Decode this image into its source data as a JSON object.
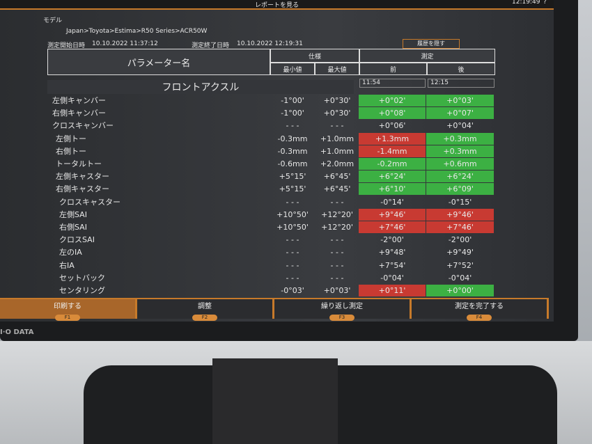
{
  "header": {
    "title": "レポートを見る",
    "clock": "12:19:49",
    "help": "?"
  },
  "model": {
    "label": "モデル",
    "path": "Japan>Toyota>Estima>R50 Series>ACR50W"
  },
  "start": {
    "label": "測定開始日時",
    "value": "10.10.2022 11:37:12"
  },
  "end": {
    "label": "測定終了日時",
    "value": "10.10.2022 12:19:31"
  },
  "hide_history": "履歴を隠す",
  "table": {
    "param_header": "パラメーター名",
    "spec_header": "仕様",
    "min_header": "最小値",
    "max_header": "最大値",
    "measure_header": "測定",
    "before_header": "前",
    "after_header": "後",
    "section": "フロントアクスル",
    "before_time": "11:54",
    "after_time": "12:15",
    "rows": [
      {
        "name": "左側キャンバー",
        "min": "-1°00'",
        "max": "+0°30'",
        "before": "+0°02'",
        "before_color": "#3cb043",
        "after": "+0°03'",
        "after_color": "#3cb043"
      },
      {
        "name": "右側キャンバー",
        "min": "-1°00'",
        "max": "+0°30'",
        "before": "+0°08'",
        "before_color": "#3cb043",
        "after": "+0°07'",
        "after_color": "#3cb043"
      },
      {
        "name": "クロスキャンバー",
        "min": "- - -",
        "max": "- - -",
        "before": "+0°06'",
        "after": "+0°04'"
      },
      {
        "name": "左側トー",
        "min": "-0.3mm",
        "max": "+1.0mm",
        "before": "+1.3mm",
        "before_color": "#c83a32",
        "after": "+0.3mm",
        "after_color": "#3cb043"
      },
      {
        "name": "右側トー",
        "min": "-0.3mm",
        "max": "+1.0mm",
        "before": "-1.4mm",
        "before_color": "#c83a32",
        "after": "+0.3mm",
        "after_color": "#3cb043"
      },
      {
        "name": "トータルトー",
        "min": "-0.6mm",
        "max": "+2.0mm",
        "before": "-0.2mm",
        "before_color": "#3cb043",
        "after": "+0.6mm",
        "after_color": "#3cb043"
      },
      {
        "name": "左側キャスター",
        "min": "+5°15'",
        "max": "+6°45'",
        "before": "+6°24'",
        "before_color": "#3cb043",
        "after": "+6°24'",
        "after_color": "#3cb043"
      },
      {
        "name": "右側キャスター",
        "min": "+5°15'",
        "max": "+6°45'",
        "before": "+6°10'",
        "before_color": "#3cb043",
        "after": "+6°09'",
        "after_color": "#3cb043"
      },
      {
        "name": "クロスキャスター",
        "min": "- - -",
        "max": "- - -",
        "before": "-0°14'",
        "after": "-0°15'"
      },
      {
        "name": "左側SAI",
        "min": "+10°50'",
        "max": "+12°20'",
        "before": "+9°46'",
        "before_color": "#c83a32",
        "after": "+9°46'",
        "after_color": "#c83a32"
      },
      {
        "name": "右側SAI",
        "min": "+10°50'",
        "max": "+12°20'",
        "before": "+7°46'",
        "before_color": "#c83a32",
        "after": "+7°46'",
        "after_color": "#c83a32"
      },
      {
        "name": "クロスSAI",
        "min": "- - -",
        "max": "- - -",
        "before": "-2°00'",
        "after": "-2°00'"
      },
      {
        "name": "左のIA",
        "min": "- - -",
        "max": "- - -",
        "before": "+9°48'",
        "after": "+9°49'"
      },
      {
        "name": "右IA",
        "min": "- - -",
        "max": "- - -",
        "before": "+7°54'",
        "after": "+7°52'"
      },
      {
        "name": "セットバック",
        "min": "- - -",
        "max": "- - -",
        "before": "-0°04'",
        "after": "-0°04'"
      },
      {
        "name": "センタリング",
        "min": "-0°03'",
        "max": "+0°03'",
        "before": "+0°11'",
        "before_color": "#c83a32",
        "after": "+0°00'",
        "after_color": "#3cb043"
      }
    ]
  },
  "buttons": [
    {
      "label": "印刷する",
      "key": "F1"
    },
    {
      "label": "調整",
      "key": "F2"
    },
    {
      "label": "繰り返し測定",
      "key": "F3"
    },
    {
      "label": "測定を完了する",
      "key": "F4"
    }
  ],
  "brand": "I·O DATA"
}
